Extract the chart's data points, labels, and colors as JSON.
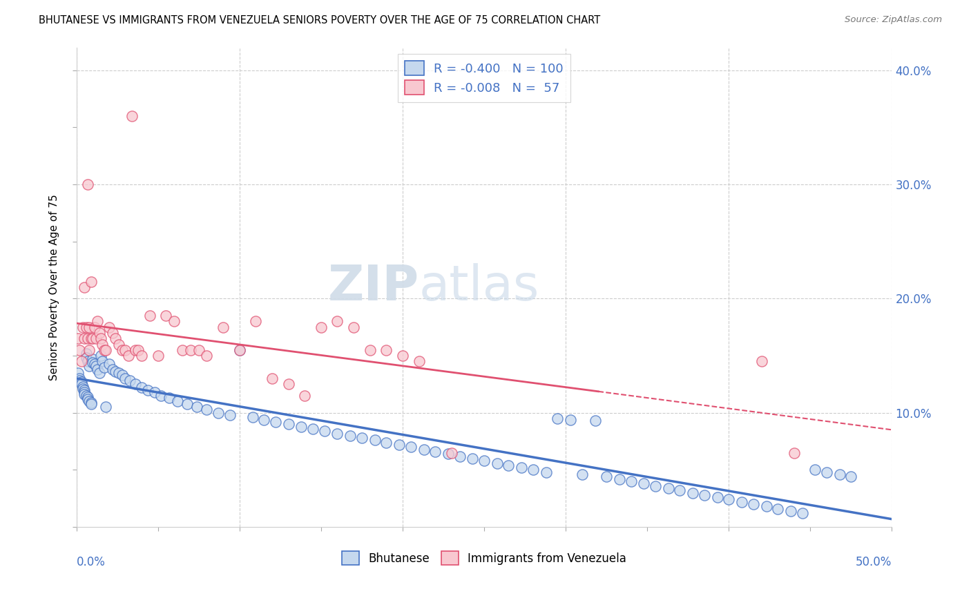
{
  "title": "BHUTANESE VS IMMIGRANTS FROM VENEZUELA SENIORS POVERTY OVER THE AGE OF 75 CORRELATION CHART",
  "source": "Source: ZipAtlas.com",
  "legend_bhutanese": "Bhutanese",
  "legend_venezuela": "Immigrants from Venezuela",
  "R_bhutanese": -0.4,
  "N_bhutanese": 100,
  "R_venezuela": -0.008,
  "N_venezuela": 57,
  "color_bhutanese_fill": "#c5d8ee",
  "color_bhutanese_edge": "#4472c4",
  "color_venezuela_fill": "#f8c8d0",
  "color_venezuela_edge": "#e05070",
  "color_bhutanese_line": "#4472c4",
  "color_venezuela_line": "#e05070",
  "color_text_blue": "#4472c4",
  "watermark_zip": "ZIP",
  "watermark_atlas": "atlas",
  "xlim": [
    0.0,
    0.5
  ],
  "ylim": [
    0.0,
    0.42
  ],
  "venezuela_line_solid_end": 0.32,
  "bhutanese_x": [
    0.001,
    0.002,
    0.002,
    0.003,
    0.003,
    0.004,
    0.004,
    0.005,
    0.005,
    0.005,
    0.006,
    0.006,
    0.006,
    0.007,
    0.007,
    0.007,
    0.008,
    0.008,
    0.009,
    0.009,
    0.01,
    0.01,
    0.011,
    0.012,
    0.013,
    0.014,
    0.015,
    0.016,
    0.017,
    0.018,
    0.02,
    0.022,
    0.024,
    0.026,
    0.028,
    0.03,
    0.033,
    0.036,
    0.04,
    0.044,
    0.048,
    0.052,
    0.057,
    0.062,
    0.068,
    0.074,
    0.08,
    0.087,
    0.094,
    0.1,
    0.108,
    0.115,
    0.122,
    0.13,
    0.138,
    0.145,
    0.152,
    0.16,
    0.168,
    0.175,
    0.183,
    0.19,
    0.198,
    0.205,
    0.213,
    0.22,
    0.228,
    0.235,
    0.243,
    0.25,
    0.258,
    0.265,
    0.273,
    0.28,
    0.288,
    0.295,
    0.303,
    0.31,
    0.318,
    0.325,
    0.333,
    0.34,
    0.348,
    0.355,
    0.363,
    0.37,
    0.378,
    0.385,
    0.393,
    0.4,
    0.408,
    0.415,
    0.423,
    0.43,
    0.438,
    0.445,
    0.453,
    0.46,
    0.468,
    0.475
  ],
  "bhutanese_y": [
    0.135,
    0.13,
    0.128,
    0.127,
    0.125,
    0.123,
    0.121,
    0.12,
    0.118,
    0.116,
    0.152,
    0.148,
    0.115,
    0.114,
    0.112,
    0.145,
    0.141,
    0.11,
    0.109,
    0.108,
    0.147,
    0.144,
    0.143,
    0.141,
    0.138,
    0.135,
    0.15,
    0.145,
    0.14,
    0.105,
    0.143,
    0.138,
    0.136,
    0.135,
    0.133,
    0.13,
    0.128,
    0.125,
    0.122,
    0.12,
    0.118,
    0.115,
    0.113,
    0.11,
    0.108,
    0.105,
    0.103,
    0.1,
    0.098,
    0.155,
    0.096,
    0.094,
    0.092,
    0.09,
    0.088,
    0.086,
    0.084,
    0.082,
    0.08,
    0.078,
    0.076,
    0.074,
    0.072,
    0.07,
    0.068,
    0.066,
    0.064,
    0.062,
    0.06,
    0.058,
    0.056,
    0.054,
    0.052,
    0.05,
    0.048,
    0.095,
    0.094,
    0.046,
    0.093,
    0.044,
    0.042,
    0.04,
    0.038,
    0.036,
    0.034,
    0.032,
    0.03,
    0.028,
    0.026,
    0.024,
    0.022,
    0.02,
    0.018,
    0.016,
    0.014,
    0.012,
    0.05,
    0.048,
    0.046,
    0.044
  ],
  "venezuela_x": [
    0.001,
    0.002,
    0.003,
    0.004,
    0.005,
    0.005,
    0.006,
    0.007,
    0.007,
    0.008,
    0.008,
    0.009,
    0.009,
    0.01,
    0.011,
    0.012,
    0.013,
    0.014,
    0.015,
    0.016,
    0.017,
    0.018,
    0.02,
    0.022,
    0.024,
    0.026,
    0.028,
    0.03,
    0.032,
    0.034,
    0.036,
    0.038,
    0.04,
    0.045,
    0.05,
    0.055,
    0.06,
    0.065,
    0.07,
    0.075,
    0.08,
    0.09,
    0.1,
    0.11,
    0.12,
    0.13,
    0.14,
    0.15,
    0.16,
    0.17,
    0.18,
    0.19,
    0.2,
    0.21,
    0.23,
    0.42,
    0.44
  ],
  "venezuela_y": [
    0.165,
    0.155,
    0.145,
    0.175,
    0.165,
    0.21,
    0.175,
    0.165,
    0.3,
    0.155,
    0.175,
    0.165,
    0.215,
    0.165,
    0.175,
    0.165,
    0.18,
    0.17,
    0.165,
    0.16,
    0.155,
    0.155,
    0.175,
    0.17,
    0.165,
    0.16,
    0.155,
    0.155,
    0.15,
    0.36,
    0.155,
    0.155,
    0.15,
    0.185,
    0.15,
    0.185,
    0.18,
    0.155,
    0.155,
    0.155,
    0.15,
    0.175,
    0.155,
    0.18,
    0.13,
    0.125,
    0.115,
    0.175,
    0.18,
    0.175,
    0.155,
    0.155,
    0.15,
    0.145,
    0.065,
    0.145,
    0.065
  ]
}
